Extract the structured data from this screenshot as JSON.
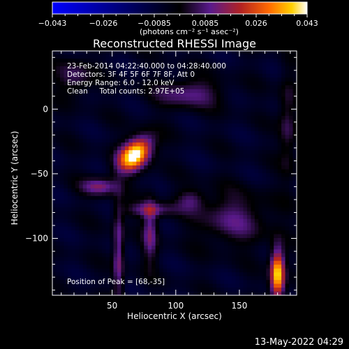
{
  "chart_data": {
    "type": "heatmap",
    "title": "Reconstructed RHESSI Image",
    "xlabel": "Heliocentric X (arcsec)",
    "ylabel": "Heliocentric Y (arcsec)",
    "xlim": [
      3,
      195
    ],
    "ylim": [
      -144,
      45
    ],
    "xticks": [
      50,
      100,
      150
    ],
    "yticks": [
      0,
      -50,
      -100
    ],
    "colorbar": {
      "min": -0.043,
      "max": 0.043,
      "tick_labels": [
        "−0.043",
        "−0.026",
        "−0.0085",
        "0.0085",
        "0.026",
        "0.043"
      ],
      "unit_label": "(photons cm⁻² s⁻¹ asec⁻²)",
      "colormap": [
        "#0000ff",
        "#000000",
        "#5a1a8c",
        "#b22222",
        "#ff6a00",
        "#ffd000",
        "#ffffff"
      ]
    },
    "annotations": {
      "time_range": "23-Feb-2014 04:22:40.000 to 04:28:40.000",
      "detectors": "Detectors: 3F 4F 5F 6F 7F 8F, Att 0",
      "energy": "Energy Range: 6.0 - 12.0 keV",
      "clean": "Clean     Total counts: 2.97E+05",
      "peak": "Position of Peak = [68,-35]"
    },
    "peak_position": [
      68,
      -35
    ],
    "background_level": -0.006,
    "sources": [
      {
        "x": 68,
        "y": -35,
        "sx": 11,
        "sy": 7,
        "angle_deg": 45,
        "amp": 0.052
      },
      {
        "x": 40,
        "y": -60,
        "sx": 10,
        "sy": 5,
        "angle_deg": 0,
        "amp": 0.02
      },
      {
        "x": 55,
        "y": -112,
        "sx": 3,
        "sy": 28,
        "angle_deg": 0,
        "amp": 0.02
      },
      {
        "x": 80,
        "y": -95,
        "sx": 4,
        "sy": 18,
        "angle_deg": 0,
        "amp": 0.018
      },
      {
        "x": 180,
        "y": -128,
        "sx": 4,
        "sy": 14,
        "angle_deg": 0,
        "amp": 0.047
      },
      {
        "x": 110,
        "y": 12,
        "sx": 18,
        "sy": 8,
        "angle_deg": 0,
        "amp": 0.016
      },
      {
        "x": 145,
        "y": -85,
        "sx": 20,
        "sy": 14,
        "angle_deg": 0,
        "amp": 0.014
      },
      {
        "x": 20,
        "y": 25,
        "sx": 10,
        "sy": 10,
        "angle_deg": 0,
        "amp": 0.013
      },
      {
        "x": 80,
        "y": -78,
        "sx": 14,
        "sy": 4,
        "angle_deg": 0,
        "amp": 0.016
      },
      {
        "x": 112,
        "y": -70,
        "sx": 8,
        "sy": 6,
        "angle_deg": 0,
        "amp": 0.012
      },
      {
        "x": 188,
        "y": -10,
        "sx": 5,
        "sy": 28,
        "angle_deg": 0,
        "amp": 0.012
      }
    ]
  },
  "footer": {
    "timestamp": "13-May-2022 04:29"
  }
}
